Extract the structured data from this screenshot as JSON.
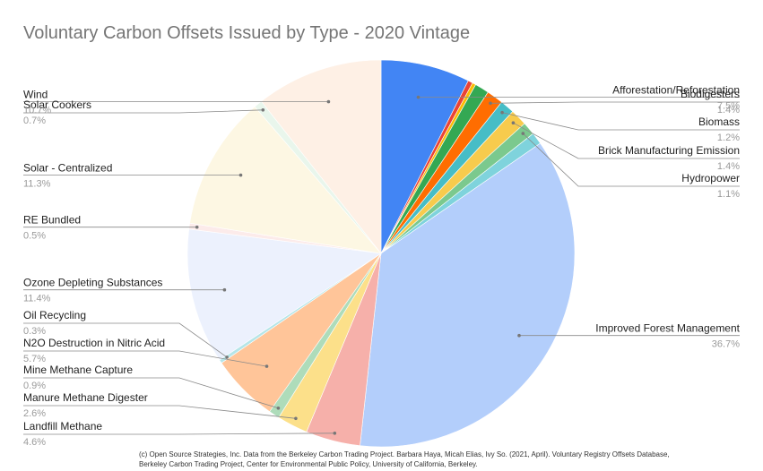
{
  "chart_data": {
    "type": "pie",
    "title": "Voluntary Carbon Offsets Issued by Type - 2020 Vintage",
    "slices": [
      {
        "label": "Afforestation/Reforestation",
        "value": 7.5,
        "pct_label": "7.5%",
        "color": "#4285f4",
        "labeled": true
      },
      {
        "label": "",
        "value": 0.4,
        "pct_label": "",
        "color": "#ea4335",
        "labeled": false
      },
      {
        "label": "",
        "value": 0.3,
        "pct_label": "",
        "color": "#fbbc04",
        "labeled": false
      },
      {
        "label": "",
        "value": 1.2,
        "pct_label": "",
        "color": "#34a853",
        "labeled": false
      },
      {
        "label": "Biodigesters",
        "value": 1.4,
        "pct_label": "1.4%",
        "color": "#ff6d01",
        "labeled": true
      },
      {
        "label": "Biomass",
        "value": 1.2,
        "pct_label": "1.2%",
        "color": "#46bdc6",
        "labeled": true
      },
      {
        "label": "Brick Manufacturing Emission",
        "value": 1.4,
        "pct_label": "1.4%",
        "color": "#f7cb4d",
        "labeled": true
      },
      {
        "label": "Hydropower",
        "value": 1.1,
        "pct_label": "1.1%",
        "color": "#7bc98e",
        "labeled": true
      },
      {
        "label": "",
        "value": 1.0,
        "pct_label": "",
        "color": "#7fd3dc",
        "labeled": false
      },
      {
        "label": "Improved Forest Management",
        "value": 36.7,
        "pct_label": "36.7%",
        "color": "#b3cefb",
        "labeled": true
      },
      {
        "label": "Landfill Methane",
        "value": 4.6,
        "pct_label": "4.6%",
        "color": "#f6b0aa",
        "labeled": true
      },
      {
        "label": "Manure Methane Digester",
        "value": 2.6,
        "pct_label": "2.6%",
        "color": "#fce08a",
        "labeled": true
      },
      {
        "label": "Mine Methane Capture",
        "value": 0.9,
        "pct_label": "0.9%",
        "color": "#aedcba",
        "labeled": true
      },
      {
        "label": "N2O Destruction in Nitric Acid",
        "value": 5.7,
        "pct_label": "5.7%",
        "color": "#ffc599",
        "labeled": true
      },
      {
        "label": "Oil Recycling",
        "value": 0.3,
        "pct_label": "0.3%",
        "color": "#b5e5e8",
        "labeled": true
      },
      {
        "label": "Ozone Depleting Substances",
        "value": 11.4,
        "pct_label": "11.4%",
        "color": "#ecf1fd",
        "labeled": true
      },
      {
        "label": "RE Bundled",
        "value": 0.5,
        "pct_label": "0.5%",
        "color": "#fcebea",
        "labeled": true
      },
      {
        "label": "Solar - Centralized",
        "value": 11.3,
        "pct_label": "11.3%",
        "color": "#fdf7e3",
        "labeled": true
      },
      {
        "label": "Solar Cookers",
        "value": 0.7,
        "pct_label": "0.7%",
        "color": "#e9f6ec",
        "labeled": true
      },
      {
        "label": "Wind",
        "value": 10.7,
        "pct_label": "10.7%",
        "color": "#fef0e5",
        "labeled": true
      }
    ],
    "legend": "none"
  },
  "footnote": {
    "line1": "(c) Open Source Strategies, Inc.  Data from the Berkeley Carbon Trading Project. Barbara Haya, Micah Elias, Ivy So. (2021, April). Voluntary Registry Offsets Database,",
    "line2": "Berkeley Carbon Trading Project, Center for Environmental Public Policy, University of California, Berkeley."
  }
}
